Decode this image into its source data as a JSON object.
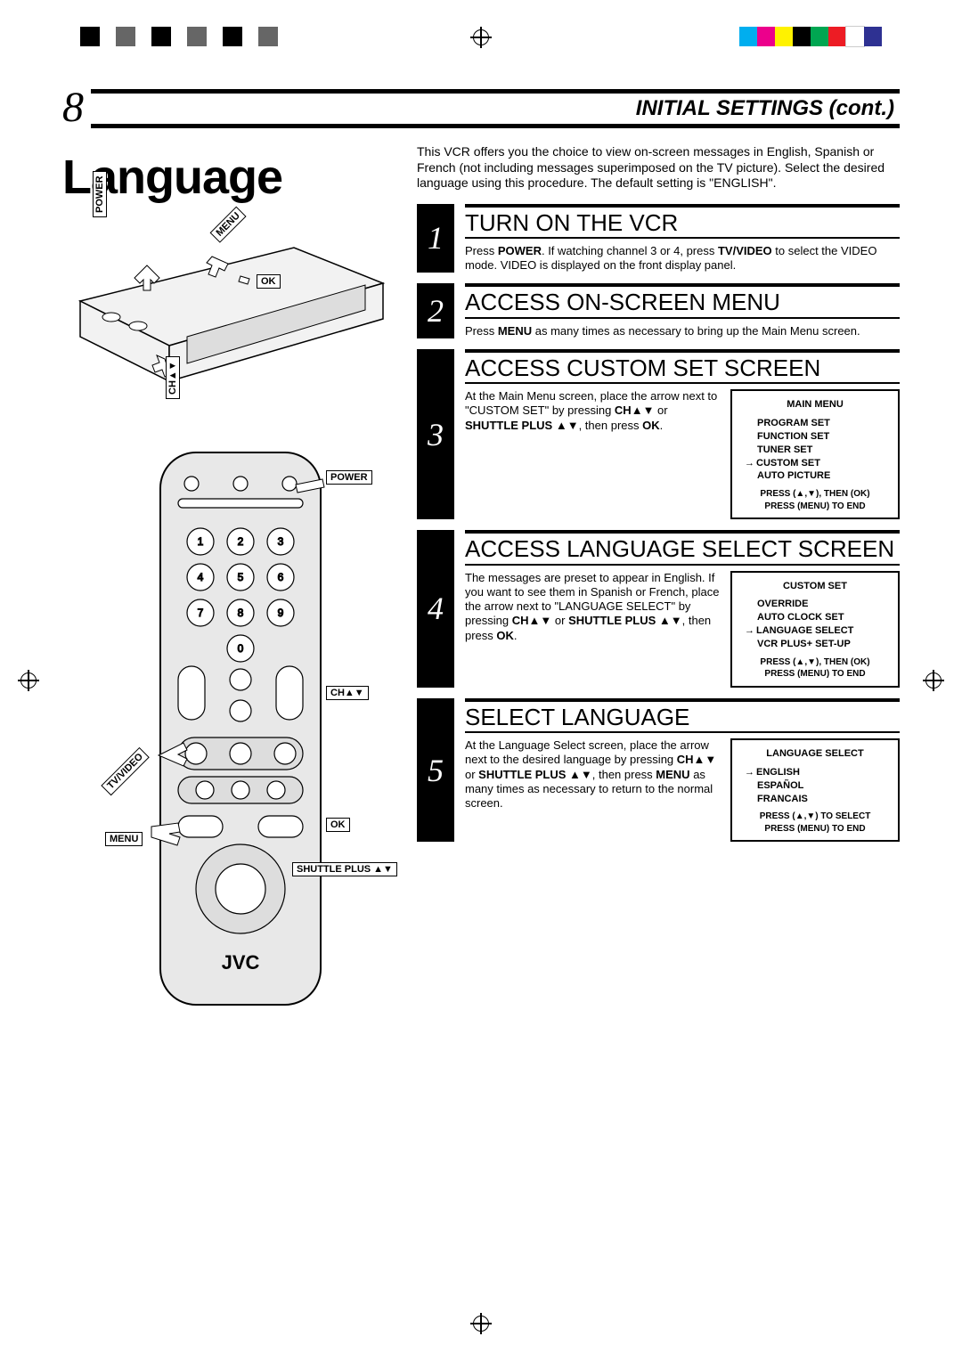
{
  "registration": {
    "bw_colors": [
      "#000000",
      "#666666",
      "#000000",
      "#666666",
      "#000000",
      "#666666"
    ],
    "color_bar": [
      "#00aeef",
      "#ec008c",
      "#fff200",
      "#000000",
      "#00a651",
      "#ed1c24",
      "#ffffff",
      "#2e3192"
    ]
  },
  "page": {
    "number": "8",
    "header": "INITIAL SETTINGS (cont.)",
    "title": "Language"
  },
  "intro": "This VCR offers you the choice to view on-screen messages in English, Spanish or French (not including messages superimposed on the TV picture). Select the desired language using this procedure. The default setting is \"ENGLISH\".",
  "vcr_labels": {
    "power": "POWER",
    "menu": "MENU",
    "ok": "OK",
    "ch": "CH▲▼"
  },
  "remote_labels": {
    "power": "POWER",
    "ch": "CH▲▼",
    "tvvideo": "TV/VIDEO",
    "ok": "OK",
    "menu": "MENU",
    "shuttle": "SHUTTLE PLUS ▲▼",
    "brand": "JVC"
  },
  "steps": [
    {
      "num": "1",
      "heading": "TURN ON THE VCR",
      "text_parts": [
        "Press ",
        "POWER",
        ". If watching channel 3 or 4, press ",
        "TV/VIDEO",
        " to select the VIDEO mode. VIDEO is displayed on the front display panel."
      ]
    },
    {
      "num": "2",
      "heading": "ACCESS ON-SCREEN MENU",
      "text_parts": [
        "Press ",
        "MENU",
        " as many times as necessary to bring up the Main Menu screen."
      ]
    },
    {
      "num": "3",
      "heading": "ACCESS CUSTOM SET SCREEN",
      "text_parts": [
        "At the Main Menu screen, place the arrow next to \"CUSTOM SET\" by pressing ",
        "CH▲▼",
        " or ",
        "SHUTTLE PLUS ▲▼",
        ", then press ",
        "OK",
        "."
      ],
      "osd": {
        "title": "MAIN MENU",
        "items": [
          "PROGRAM SET",
          "FUNCTION SET",
          "TUNER SET",
          "CUSTOM SET",
          "AUTO PICTURE"
        ],
        "selected": 3,
        "footer": [
          "PRESS (▲,▼), THEN (OK)",
          "PRESS (MENU) TO END"
        ]
      }
    },
    {
      "num": "4",
      "heading": "ACCESS LANGUAGE SELECT SCREEN",
      "text_parts": [
        "The messages are preset to appear in English. If you want to see them in Spanish or French, place the arrow next to \"LANGUAGE SELECT\" by pressing ",
        "CH▲▼",
        " or ",
        "SHUTTLE PLUS ▲▼",
        ", then press ",
        "OK",
        "."
      ],
      "osd": {
        "title": "CUSTOM SET",
        "items": [
          "OVERRIDE",
          "AUTO CLOCK SET",
          "LANGUAGE SELECT",
          "VCR PLUS+ SET-UP"
        ],
        "selected": 2,
        "footer": [
          "PRESS (▲,▼), THEN (OK)",
          "PRESS (MENU) TO END"
        ]
      }
    },
    {
      "num": "5",
      "heading": "SELECT LANGUAGE",
      "text_parts": [
        "At the Language Select screen, place the arrow next to the desired language by pressing ",
        "CH▲▼",
        " or ",
        "SHUTTLE PLUS ▲▼",
        ", then press ",
        "MENU",
        " as many times as necessary to return to the normal screen."
      ],
      "osd": {
        "title": "LANGUAGE SELECT",
        "items": [
          "ENGLISH",
          "ESPAÑOL",
          "FRANCAIS"
        ],
        "selected": 0,
        "footer": [
          "PRESS (▲,▼) TO SELECT",
          "PRESS (MENU) TO END"
        ]
      }
    }
  ]
}
